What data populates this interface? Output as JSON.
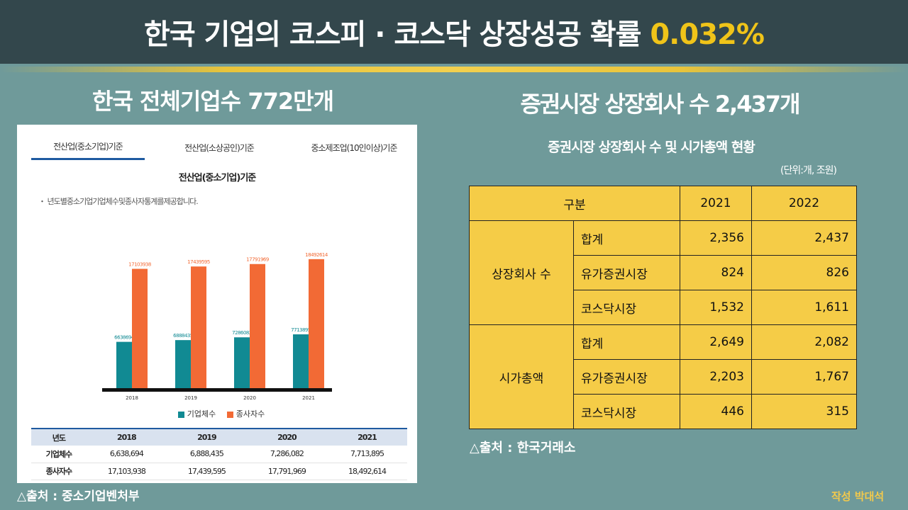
{
  "header": {
    "title_main": "한국 기업의 코스피 · 코스닥 상장성공 확률 ",
    "title_accent": "0.032%",
    "accent_color": "#f0c419"
  },
  "left": {
    "subtitle": "한국 전체기업수 772만개",
    "tabs": [
      "전산업(중소기업)기준",
      "전산업(소상공인)기준",
      "중소제조업(10인이상)기준"
    ],
    "chart_title": "전산업(중소기업)기준",
    "note": "・ 년도별중소기업기업체수및종사자통계를제공합니다.",
    "legend": [
      "기업체수",
      "종사자수"
    ],
    "table": {
      "headers": [
        "년도",
        "2018",
        "2019",
        "2020",
        "2021"
      ],
      "rows": [
        {
          "label": "기업체수",
          "values": [
            "6,638,694",
            "6,888,435",
            "7,286,082",
            "7,713,895"
          ]
        },
        {
          "label": "종사자수",
          "values": [
            "17,103,938",
            "17,439,595",
            "17,791,969",
            "18,492,614"
          ]
        }
      ]
    },
    "source": "△출처 : 중소기업벤처부"
  },
  "chart_data": {
    "type": "bar",
    "title": "전산업(중소기업)기준",
    "categories": [
      "2018",
      "2019",
      "2020",
      "2021"
    ],
    "series": [
      {
        "name": "기업체수",
        "color": "#118a93",
        "values": [
          6638694,
          6888435,
          7286082,
          7713895
        ]
      },
      {
        "name": "종사자수",
        "color": "#f26a35",
        "values": [
          17103938,
          17439595,
          17791969,
          18492614
        ]
      }
    ],
    "data_labels": {
      "기업체수": [
        "6638694",
        "6888435",
        "7286082",
        "7713895"
      ],
      "종사자수": [
        "17103938",
        "17439595",
        "17791969",
        "18492614"
      ]
    },
    "ylim": [
      0,
      20000000
    ],
    "xlabel": "",
    "ylabel": "",
    "legend_position": "bottom"
  },
  "right": {
    "subtitle": "증권시장 상장회사 수 2,437개",
    "caption": "증권시장 상장회사 수 및 시가총액 현황",
    "unit": "(단위:개, 조원)",
    "table": {
      "header": {
        "category": "구분",
        "y1": "2021",
        "y2": "2022"
      },
      "groups": [
        {
          "name": "상장회사 수",
          "rows": [
            {
              "label": "합계",
              "y1": "2,356",
              "y2": "2,437"
            },
            {
              "label": "유가증권시장",
              "y1": "824",
              "y2": "826"
            },
            {
              "label": "코스닥시장",
              "y1": "1,532",
              "y2": "1,611"
            }
          ]
        },
        {
          "name": "시가총액",
          "rows": [
            {
              "label": "합계",
              "y1": "2,649",
              "y2": "2,082"
            },
            {
              "label": "유가증권시장",
              "y1": "2,203",
              "y2": "1,767"
            },
            {
              "label": "코스닥시장",
              "y1": "446",
              "y2": "315"
            }
          ]
        }
      ]
    },
    "source": "△출처 : 한국거래소"
  },
  "author": "작성 박대석"
}
